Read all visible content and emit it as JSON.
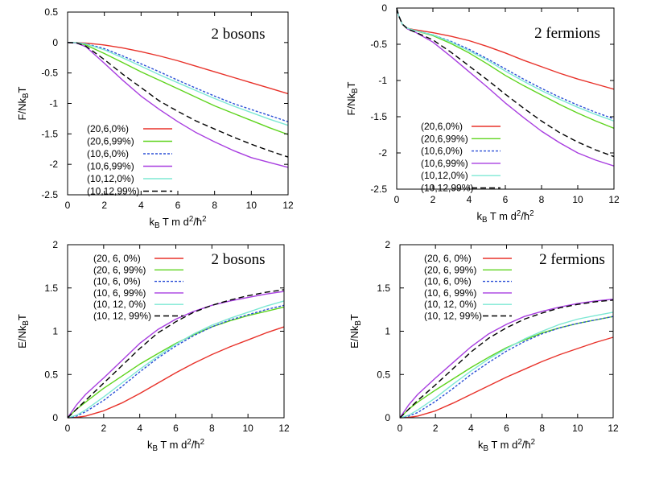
{
  "chart_data": [
    {
      "type": "line",
      "title": "2 bosons",
      "xlabel": "k_B T m d^2/ħ^2",
      "ylabel": "F/Nk_B T",
      "xlim": [
        0,
        12
      ],
      "ylim": [
        -2.5,
        0.5
      ],
      "xticks": [
        0,
        2,
        4,
        6,
        8,
        10,
        12
      ],
      "yticks": [
        0.5,
        0,
        -0.5,
        -1,
        -1.5,
        -2,
        -2.5
      ],
      "ytick_labels": [
        "0.5",
        "0",
        "-0.5",
        "-1",
        "-1.5",
        "-2",
        "-2.5"
      ],
      "legend_position": "bottom-left",
      "series": [
        {
          "name": "(20,6,0%)",
          "color": "#e8322a",
          "dash": "solid",
          "x": [
            0,
            0.5,
            1,
            2,
            3,
            4,
            5,
            6,
            7,
            8,
            9,
            10,
            11,
            12
          ],
          "y": [
            0,
            -0.002,
            -0.01,
            -0.04,
            -0.09,
            -0.15,
            -0.22,
            -0.3,
            -0.39,
            -0.48,
            -0.57,
            -0.66,
            -0.75,
            -0.84
          ]
        },
        {
          "name": "(20,6,99%)",
          "color": "#5fd41e",
          "dash": "solid",
          "x": [
            0,
            0.5,
            1,
            2,
            3,
            4,
            5,
            6,
            7,
            8,
            9,
            10,
            11,
            12
          ],
          "y": [
            0,
            -0.004,
            -0.04,
            -0.18,
            -0.33,
            -0.48,
            -0.62,
            -0.76,
            -0.9,
            -1.04,
            -1.16,
            -1.28,
            -1.4,
            -1.51
          ]
        },
        {
          "name": "(10,6,0%)",
          "color": "#2a4fd6",
          "dash": "dashed",
          "x": [
            0,
            0.5,
            1,
            2,
            3,
            4,
            5,
            6,
            7,
            8,
            9,
            10,
            11,
            12
          ],
          "y": [
            0,
            -0.003,
            -0.02,
            -0.1,
            -0.22,
            -0.35,
            -0.48,
            -0.62,
            -0.75,
            -0.88,
            -1.0,
            -1.1,
            -1.2,
            -1.3
          ]
        },
        {
          "name": "(10,6,99%)",
          "color": "#a83ee0",
          "dash": "solid",
          "x": [
            0,
            0.5,
            1,
            2,
            3,
            4,
            5,
            6,
            7,
            8,
            9,
            10,
            11,
            12
          ],
          "y": [
            0,
            -0.01,
            -0.07,
            -0.34,
            -0.62,
            -0.88,
            -1.1,
            -1.3,
            -1.48,
            -1.63,
            -1.77,
            -1.89,
            -1.97,
            -2.05
          ]
        },
        {
          "name": "(10,12,0%)",
          "color": "#7ee8d4",
          "dash": "solid",
          "x": [
            0,
            0.5,
            1,
            2,
            3,
            4,
            5,
            6,
            7,
            8,
            9,
            10,
            11,
            12
          ],
          "y": [
            0,
            -0.003,
            -0.025,
            -0.12,
            -0.25,
            -0.39,
            -0.53,
            -0.66,
            -0.79,
            -0.92,
            -1.04,
            -1.15,
            -1.26,
            -1.36
          ]
        },
        {
          "name": "(10,12,99%)",
          "color": "#000000",
          "dash": "longdash",
          "x": [
            0,
            0.5,
            1,
            2,
            3,
            4,
            5,
            6,
            7,
            8,
            9,
            10,
            11,
            12
          ],
          "y": [
            0,
            -0.008,
            -0.06,
            -0.28,
            -0.52,
            -0.74,
            -0.96,
            -1.13,
            -1.29,
            -1.42,
            -1.55,
            -1.67,
            -1.78,
            -1.88
          ]
        }
      ]
    },
    {
      "type": "line",
      "title": "2 fermions",
      "xlabel": "k_B T m d^2/ħ^2",
      "ylabel": "F/Nk_B T",
      "xlim": [
        0,
        12
      ],
      "ylim": [
        -2.5,
        0
      ],
      "xticks": [
        0,
        2,
        4,
        6,
        8,
        10,
        12
      ],
      "yticks": [
        0,
        -0.5,
        -1,
        -1.5,
        -2,
        -2.5
      ],
      "ytick_labels": [
        "0",
        "-0.5",
        "-1",
        "-1.5",
        "-2",
        "-2.5"
      ],
      "legend_position": "bottom-left",
      "series": [
        {
          "name": "(20,6,0%)",
          "color": "#e8322a",
          "dash": "solid",
          "x": [
            0,
            0.1,
            0.3,
            0.6,
            1,
            2,
            3,
            4,
            5,
            6,
            7,
            8,
            9,
            10,
            11,
            12
          ],
          "y": [
            0,
            -0.1,
            -0.22,
            -0.28,
            -0.3,
            -0.34,
            -0.39,
            -0.45,
            -0.53,
            -0.62,
            -0.72,
            -0.81,
            -0.9,
            -0.98,
            -1.05,
            -1.12
          ]
        },
        {
          "name": "(20,6,99%)",
          "color": "#5fd41e",
          "dash": "solid",
          "x": [
            0,
            0.1,
            0.3,
            0.6,
            1,
            2,
            3,
            4,
            5,
            6,
            7,
            8,
            9,
            10,
            11,
            12
          ],
          "y": [
            0,
            -0.1,
            -0.22,
            -0.28,
            -0.31,
            -0.38,
            -0.49,
            -0.62,
            -0.77,
            -0.93,
            -1.07,
            -1.2,
            -1.33,
            -1.45,
            -1.56,
            -1.66
          ]
        },
        {
          "name": "(10,6,0%)",
          "color": "#2a4fd6",
          "dash": "dashed",
          "x": [
            0,
            0.1,
            0.3,
            0.6,
            1,
            2,
            3,
            4,
            5,
            6,
            7,
            8,
            9,
            10,
            11,
            12
          ],
          "y": [
            0,
            -0.1,
            -0.22,
            -0.28,
            -0.31,
            -0.37,
            -0.46,
            -0.57,
            -0.7,
            -0.84,
            -0.98,
            -1.11,
            -1.23,
            -1.34,
            -1.44,
            -1.53
          ]
        },
        {
          "name": "(10,6,99%)",
          "color": "#a83ee0",
          "dash": "solid",
          "x": [
            0,
            0.1,
            0.3,
            0.6,
            1,
            2,
            3,
            4,
            5,
            6,
            7,
            8,
            9,
            10,
            11,
            12
          ],
          "y": [
            0,
            -0.1,
            -0.22,
            -0.29,
            -0.33,
            -0.47,
            -0.67,
            -0.88,
            -1.09,
            -1.31,
            -1.51,
            -1.7,
            -1.86,
            -2.0,
            -2.1,
            -2.18
          ]
        },
        {
          "name": "(10,12,0%)",
          "color": "#7ee8d4",
          "dash": "solid",
          "x": [
            0,
            0.1,
            0.3,
            0.6,
            1,
            2,
            3,
            4,
            5,
            6,
            7,
            8,
            9,
            10,
            11,
            12
          ],
          "y": [
            0,
            -0.1,
            -0.22,
            -0.28,
            -0.31,
            -0.37,
            -0.47,
            -0.59,
            -0.72,
            -0.87,
            -1.01,
            -1.14,
            -1.26,
            -1.37,
            -1.47,
            -1.56
          ]
        },
        {
          "name": "(10,12,99%)",
          "color": "#000000",
          "dash": "longdash",
          "x": [
            0,
            0.1,
            0.3,
            0.6,
            1,
            2,
            3,
            4,
            5,
            6,
            7,
            8,
            9,
            10,
            11,
            12
          ],
          "y": [
            0,
            -0.1,
            -0.22,
            -0.29,
            -0.33,
            -0.44,
            -0.61,
            -0.8,
            -0.99,
            -1.19,
            -1.38,
            -1.56,
            -1.72,
            -1.85,
            -1.96,
            -2.05
          ]
        }
      ]
    },
    {
      "type": "line",
      "title": "2 bosons",
      "xlabel": "k_B T m d^2/ħ^2",
      "ylabel": "E/Nk_B T",
      "xlim": [
        0,
        12
      ],
      "ylim": [
        0,
        2
      ],
      "xticks": [
        0,
        2,
        4,
        6,
        8,
        10,
        12
      ],
      "yticks": [
        0,
        0.5,
        1,
        1.5,
        2
      ],
      "ytick_labels": [
        "0",
        "0.5",
        "1",
        "1.5",
        "2"
      ],
      "legend_position": "top-left",
      "series": [
        {
          "name": "(20, 6, 0%)",
          "color": "#e8322a",
          "dash": "solid",
          "x": [
            0,
            0.5,
            1,
            2,
            3,
            4,
            5,
            6,
            7,
            8,
            9,
            10,
            11,
            12
          ],
          "y": [
            0,
            0.005,
            0.02,
            0.08,
            0.17,
            0.28,
            0.4,
            0.52,
            0.63,
            0.73,
            0.82,
            0.9,
            0.98,
            1.05
          ]
        },
        {
          "name": "(20, 6, 99%)",
          "color": "#5fd41e",
          "dash": "solid",
          "x": [
            0,
            0.5,
            1,
            2,
            3,
            4,
            5,
            6,
            7,
            8,
            9,
            10,
            11,
            12
          ],
          "y": [
            0,
            0.1,
            0.18,
            0.34,
            0.48,
            0.62,
            0.74,
            0.86,
            0.96,
            1.05,
            1.12,
            1.18,
            1.23,
            1.28
          ]
        },
        {
          "name": "(10, 6, 0%)",
          "color": "#2a4fd6",
          "dash": "dashed",
          "x": [
            0,
            0.5,
            1,
            2,
            3,
            4,
            5,
            6,
            7,
            8,
            9,
            10,
            11,
            12
          ],
          "y": [
            0,
            0.02,
            0.07,
            0.2,
            0.36,
            0.53,
            0.69,
            0.83,
            0.95,
            1.05,
            1.13,
            1.19,
            1.25,
            1.3
          ]
        },
        {
          "name": "(10, 6, 99%)",
          "color": "#a83ee0",
          "dash": "solid",
          "x": [
            0,
            0.5,
            1,
            2,
            3,
            4,
            5,
            6,
            7,
            8,
            9,
            10,
            11,
            12
          ],
          "y": [
            0,
            0.15,
            0.27,
            0.46,
            0.66,
            0.86,
            1.02,
            1.14,
            1.23,
            1.3,
            1.35,
            1.39,
            1.43,
            1.46
          ]
        },
        {
          "name": "(10, 12, 0%)",
          "color": "#7ee8d4",
          "dash": "solid",
          "x": [
            0,
            0.5,
            1,
            2,
            3,
            4,
            5,
            6,
            7,
            8,
            9,
            10,
            11,
            12
          ],
          "y": [
            0,
            0.03,
            0.09,
            0.24,
            0.4,
            0.56,
            0.71,
            0.85,
            0.97,
            1.07,
            1.15,
            1.22,
            1.29,
            1.35
          ]
        },
        {
          "name": "(10, 12, 99%)",
          "color": "#000000",
          "dash": "longdash",
          "x": [
            0,
            0.5,
            1,
            2,
            3,
            4,
            5,
            6,
            7,
            8,
            9,
            10,
            11,
            12
          ],
          "y": [
            0,
            0.1,
            0.2,
            0.4,
            0.6,
            0.8,
            0.98,
            1.11,
            1.22,
            1.3,
            1.36,
            1.41,
            1.45,
            1.48
          ]
        }
      ]
    },
    {
      "type": "line",
      "title": "2 fermions",
      "xlabel": "k_B T m d^2/ħ^2",
      "ylabel": "E/Nk_B T",
      "xlim": [
        0,
        12
      ],
      "ylim": [
        0,
        2
      ],
      "xticks": [
        0,
        2,
        4,
        6,
        8,
        10,
        12
      ],
      "yticks": [
        0,
        0.5,
        1,
        1.5,
        2
      ],
      "ytick_labels": [
        "0",
        "0.5",
        "1",
        "1.5",
        "2"
      ],
      "legend_position": "top-left",
      "series": [
        {
          "name": "(20, 6, 0%)",
          "color": "#e8322a",
          "dash": "solid",
          "x": [
            0,
            0.5,
            1,
            2,
            3,
            4,
            5,
            6,
            7,
            8,
            9,
            10,
            11,
            12
          ],
          "y": [
            0,
            0.005,
            0.02,
            0.08,
            0.17,
            0.27,
            0.37,
            0.47,
            0.56,
            0.65,
            0.73,
            0.8,
            0.87,
            0.93
          ]
        },
        {
          "name": "(20, 6, 99%)",
          "color": "#5fd41e",
          "dash": "solid",
          "x": [
            0,
            0.5,
            1,
            2,
            3,
            4,
            5,
            6,
            7,
            8,
            9,
            10,
            11,
            12
          ],
          "y": [
            0,
            0.1,
            0.18,
            0.32,
            0.45,
            0.58,
            0.7,
            0.81,
            0.9,
            0.98,
            1.04,
            1.09,
            1.13,
            1.17
          ]
        },
        {
          "name": "(10, 6, 0%)",
          "color": "#2a4fd6",
          "dash": "dashed",
          "x": [
            0,
            0.5,
            1,
            2,
            3,
            4,
            5,
            6,
            7,
            8,
            9,
            10,
            11,
            12
          ],
          "y": [
            0,
            0.02,
            0.06,
            0.19,
            0.34,
            0.5,
            0.64,
            0.77,
            0.88,
            0.97,
            1.04,
            1.09,
            1.13,
            1.17
          ]
        },
        {
          "name": "(10, 6, 99%)",
          "color": "#a83ee0",
          "dash": "solid",
          "x": [
            0,
            0.5,
            1,
            2,
            3,
            4,
            5,
            6,
            7,
            8,
            9,
            10,
            11,
            12
          ],
          "y": [
            0,
            0.15,
            0.27,
            0.46,
            0.64,
            0.82,
            0.97,
            1.08,
            1.17,
            1.23,
            1.28,
            1.32,
            1.35,
            1.37
          ]
        },
        {
          "name": "(10, 12, 0%)",
          "color": "#7ee8d4",
          "dash": "solid",
          "x": [
            0,
            0.5,
            1,
            2,
            3,
            4,
            5,
            6,
            7,
            8,
            9,
            10,
            11,
            12
          ],
          "y": [
            0,
            0.03,
            0.09,
            0.23,
            0.39,
            0.54,
            0.68,
            0.8,
            0.91,
            1.0,
            1.08,
            1.14,
            1.18,
            1.22
          ]
        },
        {
          "name": "(10, 12, 99%)",
          "color": "#000000",
          "dash": "longdash",
          "x": [
            0,
            0.5,
            1,
            2,
            3,
            4,
            5,
            6,
            7,
            8,
            9,
            10,
            11,
            12
          ],
          "y": [
            0,
            0.1,
            0.2,
            0.38,
            0.57,
            0.76,
            0.92,
            1.04,
            1.14,
            1.21,
            1.27,
            1.31,
            1.34,
            1.36
          ]
        }
      ]
    }
  ]
}
